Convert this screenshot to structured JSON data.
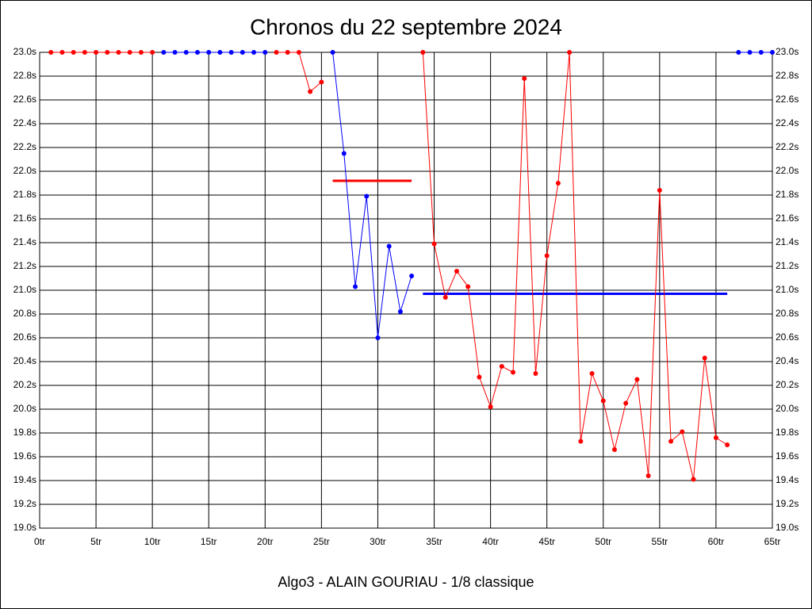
{
  "chart_data": {
    "type": "line",
    "title": "Chronos du 22 septembre 2024",
    "xlabel": "Algo3 - ALAIN GOURIAU - 1/8 classique",
    "x": [
      1,
      2,
      3,
      4,
      5,
      6,
      7,
      8,
      9,
      10,
      11,
      12,
      13,
      14,
      15,
      16,
      17,
      18,
      19,
      20,
      21,
      22,
      23,
      24,
      25,
      26,
      27,
      28,
      29,
      30,
      31,
      32,
      33,
      34,
      35,
      36,
      37,
      38,
      39,
      40,
      41,
      42,
      43,
      44,
      45,
      46,
      47,
      48,
      49,
      50,
      51,
      52,
      53,
      54,
      55,
      56,
      57,
      58,
      59,
      60,
      61,
      62,
      63,
      64,
      65
    ],
    "series": [
      {
        "color": "#ff0000",
        "values": [
          23,
          23,
          23,
          23,
          23,
          23,
          23,
          23,
          23,
          23,
          null,
          null,
          null,
          null,
          null,
          null,
          null,
          null,
          null,
          null,
          23,
          23,
          23,
          22.67,
          22.75,
          null,
          null,
          null,
          null,
          null,
          null,
          null,
          null,
          23,
          21.39,
          20.94,
          21.16,
          21.03,
          20.27,
          20.02,
          20.36,
          20.31,
          22.78,
          20.3,
          21.29,
          21.9,
          23,
          19.73,
          20.3,
          20.07,
          19.66,
          20.05,
          20.25,
          19.44,
          21.84,
          19.73,
          19.81,
          19.41,
          20.43,
          19.76,
          19.7,
          null,
          null,
          null,
          null
        ]
      },
      {
        "color": "#0000ff",
        "values": [
          null,
          null,
          null,
          null,
          null,
          null,
          null,
          null,
          null,
          null,
          23,
          23,
          23,
          23,
          23,
          23,
          23,
          23,
          23,
          23,
          null,
          null,
          null,
          null,
          null,
          23,
          22.15,
          21.03,
          21.79,
          20.6,
          21.37,
          20.82,
          21.12,
          null,
          null,
          null,
          null,
          null,
          null,
          null,
          null,
          null,
          null,
          null,
          null,
          null,
          null,
          null,
          null,
          null,
          null,
          null,
          null,
          null,
          null,
          null,
          null,
          null,
          null,
          null,
          null,
          23,
          23,
          23,
          23
        ]
      }
    ],
    "averages": [
      {
        "color": "#ff0000",
        "value": 21.92,
        "from": 26,
        "to": 33
      },
      {
        "color": "#0000ff",
        "value": 20.97,
        "from": 34,
        "to": 61
      }
    ],
    "xlim": [
      0,
      65
    ],
    "xticks": [
      {
        "value": 0,
        "label": "0tr"
      },
      {
        "value": 5,
        "label": "5tr"
      },
      {
        "value": 10,
        "label": "10tr"
      },
      {
        "value": 15,
        "label": "15tr"
      },
      {
        "value": 20,
        "label": "20tr"
      },
      {
        "value": 25,
        "label": "25tr"
      },
      {
        "value": 30,
        "label": "30tr"
      },
      {
        "value": 35,
        "label": "35tr"
      },
      {
        "value": 40,
        "label": "40tr"
      },
      {
        "value": 45,
        "label": "45tr"
      },
      {
        "value": 50,
        "label": "50tr"
      },
      {
        "value": 55,
        "label": "55tr"
      },
      {
        "value": 60,
        "label": "60tr"
      },
      {
        "value": 65,
        "label": "65tr"
      }
    ],
    "ylim": [
      19,
      23
    ],
    "yticks": [
      {
        "value": 19,
        "label": "19.0s"
      },
      {
        "value": 19.2,
        "label": "19.2s"
      },
      {
        "value": 19.4,
        "label": "19.4s"
      },
      {
        "value": 19.6,
        "label": "19.6s"
      },
      {
        "value": 19.8,
        "label": "19.8s"
      },
      {
        "value": 20,
        "label": "20.0s"
      },
      {
        "value": 20.2,
        "label": "20.2s"
      },
      {
        "value": 20.4,
        "label": "20.4s"
      },
      {
        "value": 20.6,
        "label": "20.6s"
      },
      {
        "value": 20.8,
        "label": "20.8s"
      },
      {
        "value": 21,
        "label": "21.0s"
      },
      {
        "value": 21.2,
        "label": "21.2s"
      },
      {
        "value": 21.4,
        "label": "21.4s"
      },
      {
        "value": 21.6,
        "label": "21.6s"
      },
      {
        "value": 21.8,
        "label": "21.8s"
      },
      {
        "value": 22,
        "label": "22.0s"
      },
      {
        "value": 22.2,
        "label": "22.2s"
      },
      {
        "value": 22.4,
        "label": "22.4s"
      },
      {
        "value": 22.6,
        "label": "22.6s"
      },
      {
        "value": 22.8,
        "label": "22.8s"
      },
      {
        "value": 23,
        "label": "23.0s"
      }
    ],
    "grid": true
  }
}
